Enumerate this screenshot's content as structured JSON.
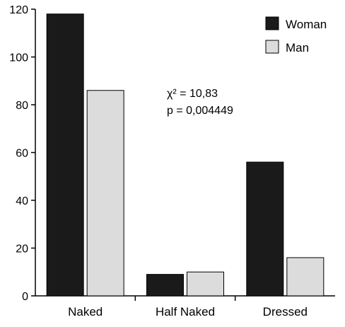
{
  "chart_data": {
    "type": "bar",
    "categories": [
      "Naked",
      "Half Naked",
      "Dressed"
    ],
    "series": [
      {
        "name": "Woman",
        "values": [
          118,
          9,
          56
        ]
      },
      {
        "name": "Man",
        "values": [
          86,
          10,
          16
        ]
      }
    ],
    "title": "",
    "xlabel": "",
    "ylabel": "",
    "ylim": [
      0,
      120
    ],
    "yticks": [
      "0",
      "20",
      "40",
      "60",
      "80",
      "100",
      "120"
    ],
    "grid": false,
    "legend_position": "top-right",
    "annotation": {
      "chi_label": "χ² = 10,83",
      "p_label": "p = 0,004449"
    },
    "colors": {
      "Woman": "#1a1a1a",
      "Man": "#dcdcdc"
    }
  }
}
